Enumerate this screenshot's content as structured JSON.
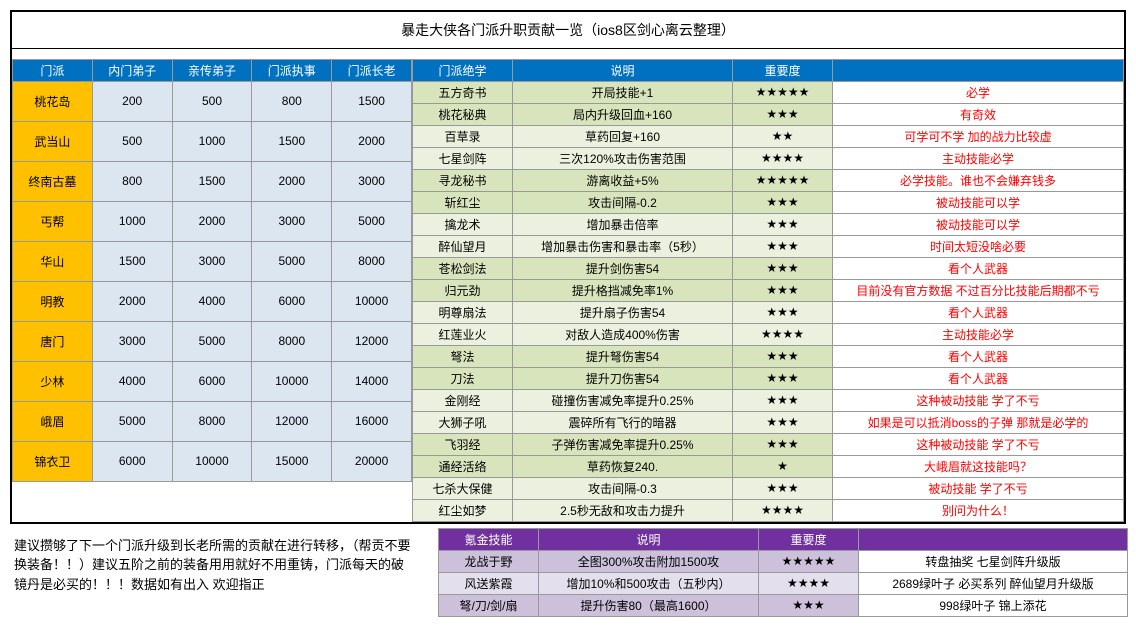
{
  "title": "暴走大侠各门派升职贡献一览（ios8区剑心离云整理）",
  "leftTable": {
    "headers": [
      "门派",
      "内门弟子",
      "亲传弟子",
      "门派执事",
      "门派长老"
    ],
    "rows": [
      {
        "sect": "桃花岛",
        "v": [
          "200",
          "500",
          "800",
          "1500"
        ]
      },
      {
        "sect": "武当山",
        "v": [
          "500",
          "1000",
          "1500",
          "2000"
        ]
      },
      {
        "sect": "终南古墓",
        "v": [
          "800",
          "1500",
          "2000",
          "3000"
        ]
      },
      {
        "sect": "丐帮",
        "v": [
          "1000",
          "2000",
          "3000",
          "5000"
        ]
      },
      {
        "sect": "华山",
        "v": [
          "1500",
          "3000",
          "5000",
          "8000"
        ]
      },
      {
        "sect": "明教",
        "v": [
          "2000",
          "4000",
          "6000",
          "10000"
        ]
      },
      {
        "sect": "唐门",
        "v": [
          "3000",
          "5000",
          "8000",
          "12000"
        ]
      },
      {
        "sect": "少林",
        "v": [
          "4000",
          "6000",
          "10000",
          "14000"
        ]
      },
      {
        "sect": "峨眉",
        "v": [
          "5000",
          "8000",
          "12000",
          "16000"
        ]
      },
      {
        "sect": "锦衣卫",
        "v": [
          "6000",
          "10000",
          "15000",
          "20000"
        ]
      }
    ]
  },
  "rightTable": {
    "headers": [
      "门派绝学",
      "说明",
      "重要度",
      ""
    ],
    "rows": [
      {
        "skill": "五方奇书",
        "desc": "开局技能+1",
        "stars": 5,
        "note": "必学"
      },
      {
        "skill": "桃花秘典",
        "desc": "局内升级回血+160",
        "stars": 3,
        "note": "有奇效"
      },
      {
        "skill": "百草录",
        "desc": "草药回复+160",
        "stars": 2,
        "note": "可学可不学 加的战力比较虚"
      },
      {
        "skill": "七星剑阵",
        "desc": "三次120%攻击伤害范围",
        "stars": 4,
        "note": "主动技能必学"
      },
      {
        "skill": "寻龙秘书",
        "desc": "游离收益+5%",
        "stars": 5,
        "note": "必学技能。谁也不会嫌弃钱多"
      },
      {
        "skill": "斩红尘",
        "desc": "攻击间隔-0.2",
        "stars": 3,
        "note": "被动技能可以学"
      },
      {
        "skill": "擒龙术",
        "desc": "增加暴击倍率",
        "stars": 3,
        "note": "被动技能可以学"
      },
      {
        "skill": "醉仙望月",
        "desc": "增加暴击伤害和暴击率（5秒）",
        "stars": 3,
        "note": "时间太短没啥必要"
      },
      {
        "skill": "苍松剑法",
        "desc": "提升剑伤害54",
        "stars": 3,
        "note": "看个人武器"
      },
      {
        "skill": "归元劲",
        "desc": "提升格挡减免率1%",
        "stars": 3,
        "note": "目前没有官方数据 不过百分比技能后期都不亏"
      },
      {
        "skill": "明尊扇法",
        "desc": "提升扇子伤害54",
        "stars": 3,
        "note": "看个人武器"
      },
      {
        "skill": "红莲业火",
        "desc": "对敌人造成400%伤害",
        "stars": 4,
        "note": "主动技能必学"
      },
      {
        "skill": "弩法",
        "desc": "提升弩伤害54",
        "stars": 3,
        "note": "看个人武器"
      },
      {
        "skill": "刀法",
        "desc": "提升刀伤害54",
        "stars": 3,
        "note": "看个人武器"
      },
      {
        "skill": "金刚经",
        "desc": "碰撞伤害减免率提升0.25%",
        "stars": 3,
        "note": "这种被动技能 学了不亏"
      },
      {
        "skill": "大狮子吼",
        "desc": "震碎所有飞行的暗器",
        "stars": 3,
        "note": "如果是可以抵消boss的子弹 那就是必学的"
      },
      {
        "skill": "飞羽经",
        "desc": "子弹伤害减免率提升0.25%",
        "stars": 3,
        "note": "这种被动技能 学了不亏"
      },
      {
        "skill": "通经活络",
        "desc": "草药恢复240.",
        "stars": 1,
        "note": "大峨眉就这技能吗？"
      },
      {
        "skill": "七杀大保健",
        "desc": "攻击间隔-0.3",
        "stars": 3,
        "note": "被动技能 学了不亏"
      },
      {
        "skill": "红尘如梦",
        "desc": "2.5秒无敌和攻击力提升",
        "stars": 4,
        "note": "别问为什么！"
      }
    ]
  },
  "advice": "建议攒够了下一个门派升级到长老所需的贡献在进行转移，（帮贡不要换装备！！）建议五阶之前的装备用用就好不用重铸，门派每天的破镜丹是必买的！！！数据如有出入 欢迎指正",
  "krTable": {
    "headers": [
      "氪金技能",
      "说明",
      "重要度",
      ""
    ],
    "rows": [
      {
        "skill": "龙战于野",
        "desc": "全图300%攻击附加1500攻",
        "stars": 5,
        "note": "转盘抽奖 七星剑阵升级版"
      },
      {
        "skill": "风送紫霞",
        "desc": "增加10%和500攻击（五秒内）",
        "stars": 4,
        "note": "2689绿叶子 必买系列 醉仙望月升级版"
      },
      {
        "skill": "弩/刀/剑/扇",
        "desc": "提升伤害80（最高1600）",
        "stars": 3,
        "note": "998绿叶子 锦上添花"
      }
    ]
  },
  "colors": {
    "headerBlue": "#0070c0",
    "headerPurple": "#7030a0",
    "orange": "#ffc000",
    "lightBlue": "#dce6f1",
    "green1": "#d8e4bc",
    "green2": "#ebf1de",
    "purple1": "#ccc0da",
    "purple2": "#e4dfec",
    "redText": "#ff0000"
  }
}
